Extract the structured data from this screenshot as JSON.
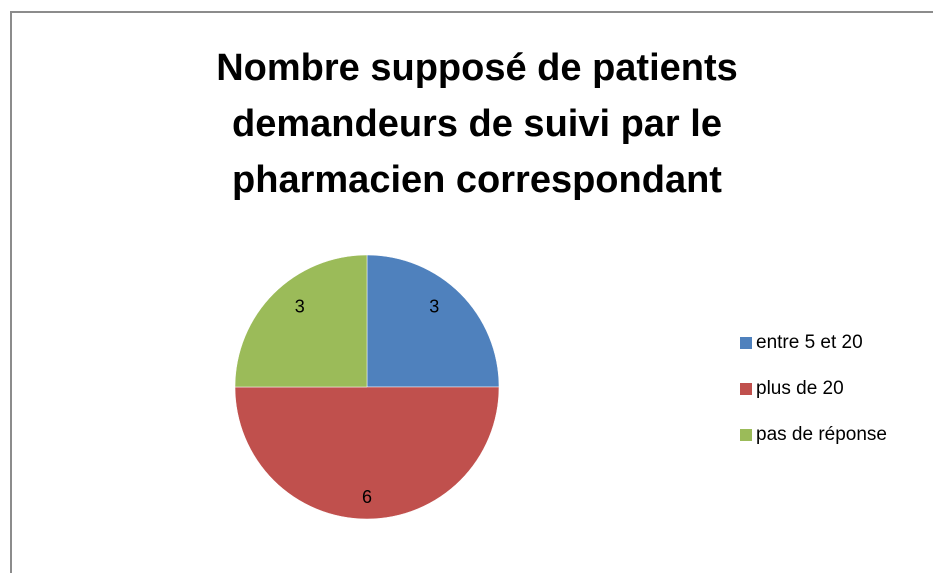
{
  "chart_data": {
    "type": "pie",
    "title": "Nombre supposé de patients demandeurs de suivi par le pharmacien correspondant",
    "categories": [
      "entre 5 et 20",
      "plus de 20",
      "pas de réponse"
    ],
    "values": [
      3,
      6,
      3
    ],
    "colors": [
      "#4f81bd",
      "#c0504d",
      "#9bbb59"
    ],
    "legend": "right"
  }
}
